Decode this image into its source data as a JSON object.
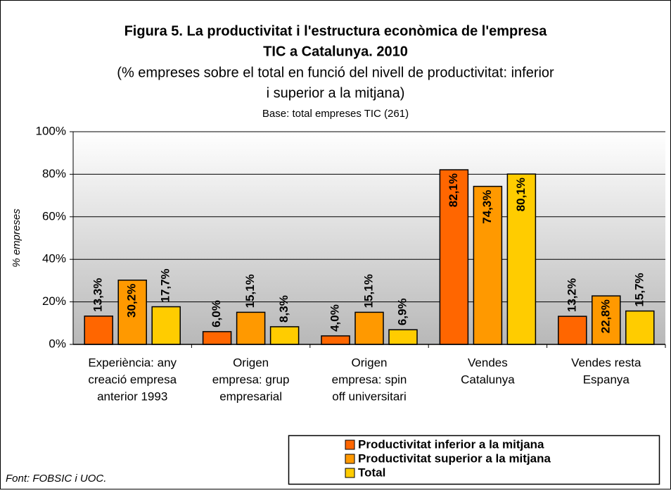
{
  "chart_data": {
    "type": "bar",
    "title": [
      "Figura 5. La productivitat i l'estructura econòmica de l'empresa",
      "TIC a Catalunya. 2010"
    ],
    "subtitle": [
      "(% empreses sobre el total en funció del nivell de productivitat: inferior",
      "i superior a la mitjana)"
    ],
    "note": "Base: total empreses TIC (261)",
    "source": "Font: FOBSIC i UOC.",
    "ylabel": "% empreses",
    "categories": [
      [
        "Experiència: any",
        "creació empresa",
        "anterior 1993"
      ],
      [
        "Origen",
        "empresa: grup",
        "empresarial"
      ],
      [
        "Origen",
        "empresa: spin",
        "off universitari"
      ],
      [
        "Vendes",
        "Catalunya"
      ],
      [
        "Vendes resta",
        "Espanya"
      ]
    ],
    "series": [
      {
        "name": "Productivitat inferior a la mitjana",
        "color": "#ff6600",
        "values": [
          13.3,
          6.0,
          4.0,
          82.1,
          13.2
        ],
        "value_labels": [
          "13,3%",
          "6,0%",
          "4,0%",
          "82,1%",
          "13,2%"
        ]
      },
      {
        "name": "Productivitat superior a la mitjana",
        "color": "#ff9900",
        "values": [
          30.2,
          15.1,
          15.1,
          74.3,
          22.8
        ],
        "value_labels": [
          "30,2%",
          "15,1%",
          "15,1%",
          "74,3%",
          "22,8%"
        ]
      },
      {
        "name": "Total",
        "color": "#ffcc00",
        "values": [
          17.7,
          8.3,
          6.9,
          80.1,
          15.7
        ],
        "value_labels": [
          "17,7%",
          "8,3%",
          "6,9%",
          "80,1%",
          "15,7%"
        ]
      }
    ],
    "ylim": [
      0,
      100
    ],
    "yticks": [
      {
        "value": 0,
        "label": "0%"
      },
      {
        "value": 20,
        "label": "20%"
      },
      {
        "value": 40,
        "label": "40%"
      },
      {
        "value": 60,
        "label": "60%"
      },
      {
        "value": 80,
        "label": "80%"
      },
      {
        "value": 100,
        "label": "100%"
      }
    ],
    "grid": true
  }
}
